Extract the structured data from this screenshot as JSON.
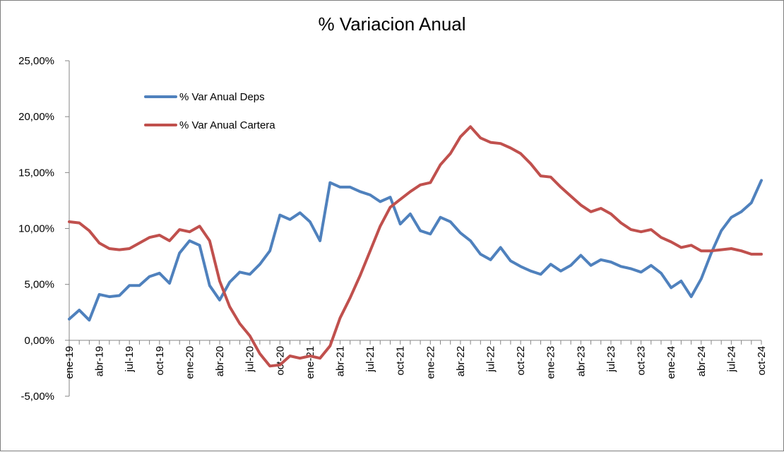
{
  "chart_data": {
    "type": "line",
    "title": "% Variacion Anual",
    "xlabel": "",
    "ylabel": "",
    "ylim": [
      -0.05,
      0.25
    ],
    "y_ticks": [
      "25,00%",
      "20,00%",
      "15,00%",
      "10,00%",
      "5,00%",
      "0,00%",
      "-5,00%"
    ],
    "y_tick_values": [
      0.25,
      0.2,
      0.15,
      0.1,
      0.05,
      0.0,
      -0.05
    ],
    "x_tick_labels": [
      "ene-19",
      "abr-19",
      "jul-19",
      "oct-19",
      "ene-20",
      "abr-20",
      "jul-20",
      "oct-20",
      "ene-21",
      "abr-21",
      "jul-21",
      "oct-21",
      "ene-22",
      "abr-22",
      "jul-22",
      "oct-22",
      "ene-23",
      "abr-23",
      "jul-23",
      "oct-23",
      "ene-24",
      "abr-24",
      "jul-24",
      "oct-24"
    ],
    "legend_position": "top-left",
    "grid": false,
    "x": [
      "ene-19",
      "feb-19",
      "mar-19",
      "abr-19",
      "may-19",
      "jun-19",
      "jul-19",
      "ago-19",
      "sep-19",
      "oct-19",
      "nov-19",
      "dic-19",
      "ene-20",
      "feb-20",
      "mar-20",
      "abr-20",
      "may-20",
      "jun-20",
      "jul-20",
      "ago-20",
      "sep-20",
      "oct-20",
      "nov-20",
      "dic-20",
      "ene-21",
      "feb-21",
      "mar-21",
      "abr-21",
      "may-21",
      "jun-21",
      "jul-21",
      "ago-21",
      "sep-21",
      "oct-21",
      "nov-21",
      "dic-21",
      "ene-22",
      "feb-22",
      "mar-22",
      "abr-22",
      "may-22",
      "jun-22",
      "jul-22",
      "ago-22",
      "sep-22",
      "oct-22",
      "nov-22",
      "dic-22",
      "ene-23",
      "feb-23",
      "mar-23",
      "abr-23",
      "may-23",
      "jun-23",
      "jul-23",
      "ago-23",
      "sep-23",
      "oct-23",
      "nov-23",
      "dic-23",
      "ene-24",
      "feb-24",
      "mar-24",
      "abr-24",
      "may-24",
      "jun-24",
      "jul-24",
      "ago-24",
      "sep-24",
      "oct-24"
    ],
    "series": [
      {
        "name": "% Var Anual Deps",
        "color": "#4F81BD",
        "values": [
          0.019,
          0.027,
          0.018,
          0.041,
          0.039,
          0.04,
          0.049,
          0.049,
          0.057,
          0.06,
          0.051,
          0.078,
          0.089,
          0.085,
          0.049,
          0.036,
          0.052,
          0.061,
          0.059,
          0.068,
          0.08,
          0.112,
          0.108,
          0.114,
          0.106,
          0.089,
          0.141,
          0.137,
          0.137,
          0.133,
          0.13,
          0.124,
          0.128,
          0.104,
          0.113,
          0.098,
          0.095,
          0.11,
          0.106,
          0.096,
          0.089,
          0.077,
          0.072,
          0.083,
          0.071,
          0.066,
          0.062,
          0.059,
          0.068,
          0.062,
          0.067,
          0.076,
          0.067,
          0.072,
          0.07,
          0.066,
          0.064,
          0.061,
          0.067,
          0.06,
          0.047,
          0.053,
          0.039,
          0.055,
          0.078,
          0.098,
          0.11,
          0.115,
          0.123,
          0.143
        ]
      },
      {
        "name": "% Var Anual Cartera",
        "color": "#C0504D",
        "values": [
          0.106,
          0.105,
          0.098,
          0.087,
          0.082,
          0.081,
          0.082,
          0.087,
          0.092,
          0.094,
          0.089,
          0.099,
          0.097,
          0.102,
          0.089,
          0.053,
          0.03,
          0.015,
          0.004,
          -0.012,
          -0.023,
          -0.022,
          -0.014,
          -0.016,
          -0.014,
          -0.016,
          -0.005,
          0.02,
          0.038,
          0.058,
          0.08,
          0.102,
          0.119,
          0.126,
          0.133,
          0.139,
          0.141,
          0.157,
          0.167,
          0.182,
          0.191,
          0.181,
          0.177,
          0.176,
          0.172,
          0.167,
          0.158,
          0.147,
          0.146,
          0.137,
          0.129,
          0.121,
          0.115,
          0.118,
          0.113,
          0.105,
          0.099,
          0.097,
          0.099,
          0.092,
          0.088,
          0.083,
          0.085,
          0.08,
          0.08,
          0.081,
          0.082,
          0.08,
          0.077,
          0.077
        ]
      }
    ]
  }
}
